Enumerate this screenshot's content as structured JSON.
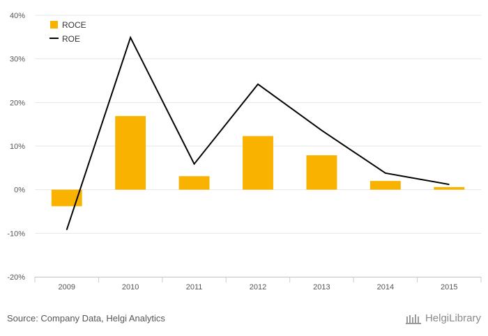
{
  "chart_data": {
    "type": "bar",
    "categories": [
      "2009",
      "2010",
      "2011",
      "2012",
      "2013",
      "2014",
      "2015"
    ],
    "series": [
      {
        "name": "ROCE",
        "kind": "bar",
        "color": "#f9b200",
        "values": [
          -3.8,
          16.9,
          3.1,
          12.3,
          7.9,
          2.0,
          0.6
        ]
      },
      {
        "name": "ROE",
        "kind": "line",
        "color": "#000000",
        "values": [
          -9.2,
          34.9,
          5.9,
          24.2,
          13.6,
          3.8,
          1.2
        ]
      }
    ],
    "y_ticks": [
      "-20%",
      "-10%",
      "0%",
      "10%",
      "20%",
      "30%",
      "40%"
    ],
    "ylim": [
      -20,
      40
    ],
    "grid": true,
    "legend_position": "top-left"
  },
  "footer": {
    "source": "Source: Company Data, Helgi Analytics",
    "brand": "HelgiLibrary"
  }
}
